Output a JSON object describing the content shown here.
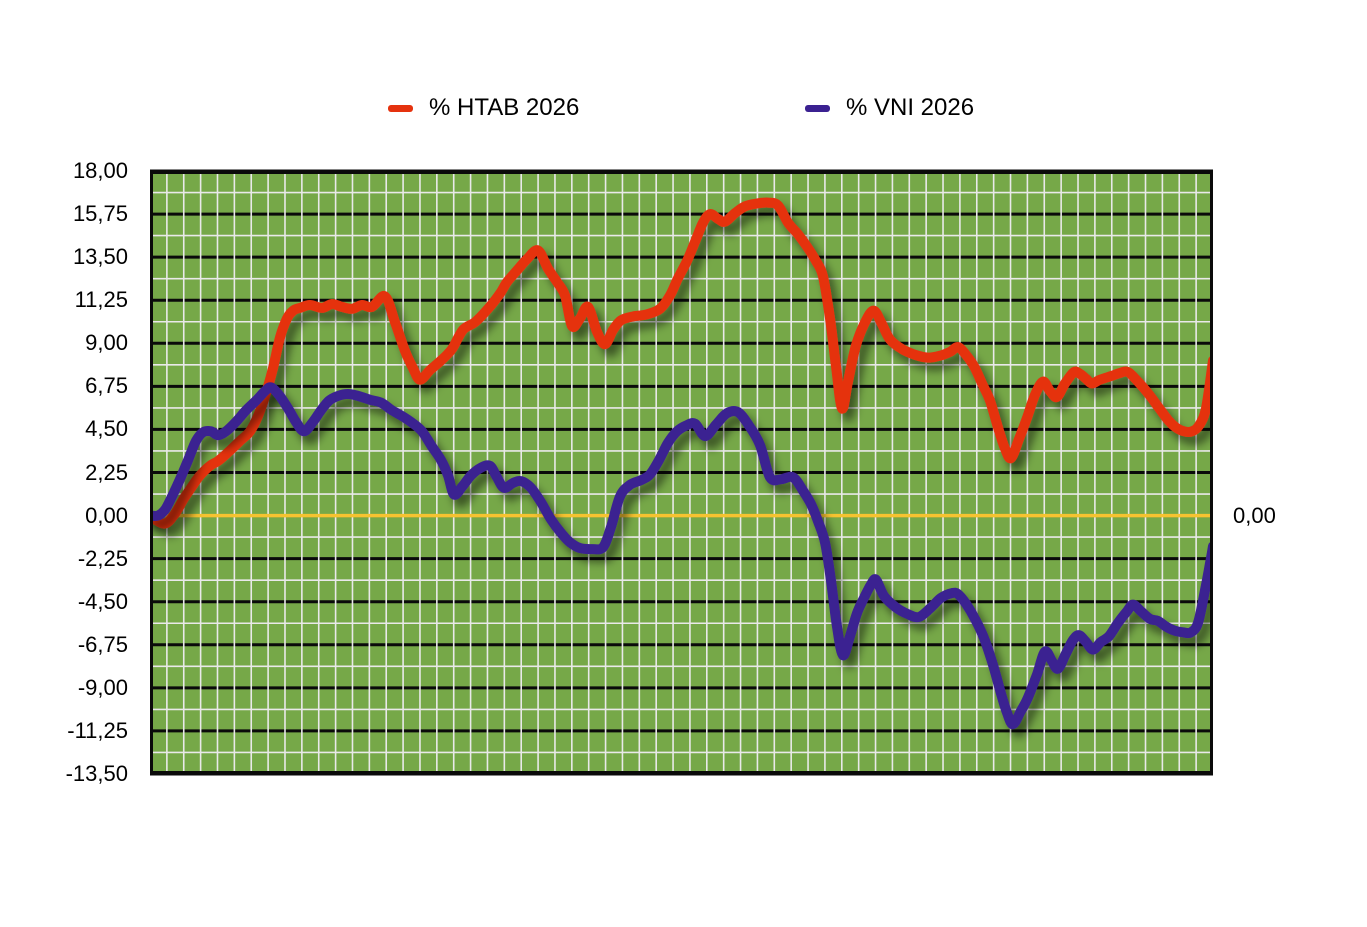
{
  "legend": {
    "items": [
      {
        "label": "% HTAB 2026",
        "color": "#E5320E"
      },
      {
        "label": "% VNI 2026",
        "color": "#3B2191"
      }
    ]
  },
  "chart_data": {
    "type": "line",
    "title": "",
    "xlabel": "",
    "ylabel": "",
    "x_axis": {
      "unit": "percent_of_plot_width",
      "tick_labels_visible": false,
      "vertical_grid_columns": 63
    },
    "y_axis": {
      "min": -13.5,
      "max": 18,
      "major_step": 2.25,
      "minor_step": 1.125,
      "tick_labels": [
        "18,00",
        "15,75",
        "13,50",
        "11,25",
        "9,00",
        "6,75",
        "4,50",
        "2,25",
        "0,00",
        "-2,25",
        "-4,50",
        "-6,75",
        "-9,00",
        "-11,25",
        "-13,50"
      ],
      "right_zero_label": "0,00"
    },
    "plot_style": {
      "background": "#76A848",
      "major_grid_color": "#0A0A0A",
      "minor_grid_color": "#E9E9E9",
      "zero_line_color": "#F6C330",
      "border_color": "#0A0A0A",
      "line_width": 10,
      "grid_on": true,
      "legend_position": "top"
    },
    "series": [
      {
        "name": "% HTAB 2026",
        "color": "#E5320E",
        "points": [
          [
            0,
            0
          ],
          [
            0.75,
            -0.3
          ],
          [
            1.51,
            -0.4
          ],
          [
            2.35,
            0.1
          ],
          [
            3.2,
            0.9
          ],
          [
            4.05,
            1.6
          ],
          [
            4.7,
            2.1
          ],
          [
            5.64,
            2.6
          ],
          [
            6.4,
            2.85
          ],
          [
            7.34,
            3.3
          ],
          [
            8.47,
            3.9
          ],
          [
            9.41,
            4.4
          ],
          [
            10.16,
            5.2
          ],
          [
            10.91,
            6.4
          ],
          [
            11.57,
            7.7
          ],
          [
            12.23,
            9.3
          ],
          [
            12.89,
            10.3
          ],
          [
            13.45,
            10.7
          ],
          [
            14.11,
            10.85
          ],
          [
            15.05,
            11.0
          ],
          [
            16.18,
            10.85
          ],
          [
            17.12,
            11.05
          ],
          [
            18.06,
            10.9
          ],
          [
            19.0,
            10.8
          ],
          [
            19.94,
            11.0
          ],
          [
            20.88,
            10.9
          ],
          [
            22.11,
            11.45
          ],
          [
            23.05,
            10.1
          ],
          [
            23.99,
            8.6
          ],
          [
            24.74,
            7.7
          ],
          [
            25.4,
            7.1
          ],
          [
            26.34,
            7.6
          ],
          [
            27.38,
            8.1
          ],
          [
            28.41,
            8.7
          ],
          [
            29.44,
            9.7
          ],
          [
            30.57,
            10.1
          ],
          [
            31.8,
            10.8
          ],
          [
            32.93,
            11.6
          ],
          [
            33.58,
            12.2
          ],
          [
            34.52,
            12.8
          ],
          [
            35.47,
            13.4
          ],
          [
            36.5,
            13.85
          ],
          [
            37.44,
            12.9
          ],
          [
            38.29,
            12.2
          ],
          [
            39.04,
            11.5
          ],
          [
            39.7,
            9.9
          ],
          [
            40.45,
            10.3
          ],
          [
            41.2,
            10.9
          ],
          [
            42.05,
            9.6
          ],
          [
            42.8,
            8.95
          ],
          [
            43.56,
            9.7
          ],
          [
            44.31,
            10.2
          ],
          [
            45.44,
            10.4
          ],
          [
            46.66,
            10.5
          ],
          [
            47.98,
            10.8
          ],
          [
            48.92,
            11.5
          ],
          [
            49.67,
            12.4
          ],
          [
            50.52,
            13.3
          ],
          [
            51.27,
            14.3
          ],
          [
            52.02,
            15.3
          ],
          [
            52.68,
            15.75
          ],
          [
            53.43,
            15.5
          ],
          [
            54.09,
            15.35
          ],
          [
            55.03,
            15.8
          ],
          [
            55.97,
            16.15
          ],
          [
            57.1,
            16.3
          ],
          [
            58.14,
            16.35
          ],
          [
            59.08,
            16.2
          ],
          [
            60.02,
            15.3
          ],
          [
            60.96,
            14.7
          ],
          [
            61.81,
            14.05
          ],
          [
            62.65,
            13.3
          ],
          [
            63.31,
            12.5
          ],
          [
            63.97,
            10.3
          ],
          [
            64.53,
            7.8
          ],
          [
            65.1,
            5.6
          ],
          [
            65.66,
            7.0
          ],
          [
            66.42,
            8.9
          ],
          [
            67.36,
            10.2
          ],
          [
            68.11,
            10.7
          ],
          [
            68.86,
            10.0
          ],
          [
            69.61,
            9.2
          ],
          [
            70.74,
            8.7
          ],
          [
            71.97,
            8.4
          ],
          [
            73.19,
            8.25
          ],
          [
            74.32,
            8.35
          ],
          [
            75.26,
            8.55
          ],
          [
            76.01,
            8.8
          ],
          [
            76.76,
            8.4
          ],
          [
            77.52,
            7.8
          ],
          [
            78.27,
            6.9
          ],
          [
            79.02,
            6.0
          ],
          [
            79.77,
            4.6
          ],
          [
            80.43,
            3.5
          ],
          [
            81.0,
            3.0
          ],
          [
            81.75,
            4.0
          ],
          [
            82.5,
            5.1
          ],
          [
            83.25,
            6.3
          ],
          [
            84.01,
            7.0
          ],
          [
            84.67,
            6.5
          ],
          [
            85.32,
            6.2
          ],
          [
            86.08,
            6.9
          ],
          [
            86.92,
            7.5
          ],
          [
            87.49,
            7.4
          ],
          [
            88.05,
            7.15
          ],
          [
            88.62,
            6.9
          ],
          [
            89.37,
            7.1
          ],
          [
            90.5,
            7.3
          ],
          [
            91.25,
            7.45
          ],
          [
            92.0,
            7.5
          ],
          [
            92.94,
            7.0
          ],
          [
            93.88,
            6.4
          ],
          [
            94.82,
            5.7
          ],
          [
            95.77,
            5.0
          ],
          [
            96.52,
            4.6
          ],
          [
            97.27,
            4.4
          ],
          [
            98.02,
            4.4
          ],
          [
            98.68,
            4.7
          ],
          [
            99.34,
            5.6
          ],
          [
            100,
            8.1
          ]
        ]
      },
      {
        "name": "% VNI 2026",
        "color": "#3B2191",
        "points": [
          [
            0,
            0
          ],
          [
            0.75,
            0.0
          ],
          [
            1.41,
            0.3
          ],
          [
            2.07,
            1.0
          ],
          [
            2.82,
            1.9
          ],
          [
            3.58,
            2.9
          ],
          [
            4.33,
            3.9
          ],
          [
            4.99,
            4.35
          ],
          [
            5.74,
            4.4
          ],
          [
            6.4,
            4.2
          ],
          [
            7.15,
            4.4
          ],
          [
            8.09,
            4.9
          ],
          [
            9.03,
            5.5
          ],
          [
            9.97,
            6.0
          ],
          [
            10.82,
            6.5
          ],
          [
            11.38,
            6.7
          ],
          [
            12.14,
            6.3
          ],
          [
            12.98,
            5.6
          ],
          [
            13.73,
            4.9
          ],
          [
            14.49,
            4.4
          ],
          [
            15.33,
            4.9
          ],
          [
            16.09,
            5.5
          ],
          [
            16.84,
            6.0
          ],
          [
            17.69,
            6.25
          ],
          [
            18.63,
            6.35
          ],
          [
            19.57,
            6.25
          ],
          [
            20.7,
            6.05
          ],
          [
            21.73,
            5.9
          ],
          [
            22.77,
            5.5
          ],
          [
            23.71,
            5.2
          ],
          [
            24.65,
            4.85
          ],
          [
            25.59,
            4.4
          ],
          [
            26.53,
            3.6
          ],
          [
            27.38,
            2.9
          ],
          [
            28.03,
            2.1
          ],
          [
            28.6,
            1.1
          ],
          [
            29.35,
            1.5
          ],
          [
            30.2,
            2.1
          ],
          [
            31.14,
            2.5
          ],
          [
            31.98,
            2.6
          ],
          [
            32.64,
            2.0
          ],
          [
            33.3,
            1.45
          ],
          [
            34.15,
            1.7
          ],
          [
            34.9,
            1.8
          ],
          [
            35.84,
            1.45
          ],
          [
            36.78,
            0.7
          ],
          [
            37.72,
            -0.2
          ],
          [
            38.66,
            -0.9
          ],
          [
            39.51,
            -1.4
          ],
          [
            40.45,
            -1.7
          ],
          [
            41.58,
            -1.75
          ],
          [
            42.62,
            -1.65
          ],
          [
            43.37,
            -0.6
          ],
          [
            44.21,
            1.0
          ],
          [
            45.15,
            1.6
          ],
          [
            46.19,
            1.85
          ],
          [
            47.04,
            2.15
          ],
          [
            47.88,
            2.9
          ],
          [
            48.73,
            3.8
          ],
          [
            49.58,
            4.4
          ],
          [
            50.42,
            4.7
          ],
          [
            51.27,
            4.8
          ],
          [
            52.21,
            4.15
          ],
          [
            53.25,
            4.75
          ],
          [
            54.28,
            5.35
          ],
          [
            55.32,
            5.4
          ],
          [
            56.35,
            4.7
          ],
          [
            57.38,
            3.7
          ],
          [
            58.33,
            2.0
          ],
          [
            59.36,
            1.9
          ],
          [
            60.49,
            2.0
          ],
          [
            61.43,
            1.3
          ],
          [
            62.18,
            0.6
          ],
          [
            62.84,
            -0.3
          ],
          [
            63.5,
            -1.4
          ],
          [
            64.06,
            -3.4
          ],
          [
            64.63,
            -5.8
          ],
          [
            65.19,
            -7.3
          ],
          [
            65.85,
            -6.3
          ],
          [
            66.51,
            -5.1
          ],
          [
            67.17,
            -4.3
          ],
          [
            67.83,
            -3.6
          ],
          [
            68.3,
            -3.35
          ],
          [
            69.05,
            -4.2
          ],
          [
            70.18,
            -4.8
          ],
          [
            71.31,
            -5.15
          ],
          [
            72.34,
            -5.3
          ],
          [
            73.47,
            -4.8
          ],
          [
            74.41,
            -4.3
          ],
          [
            75.45,
            -4.05
          ],
          [
            76.01,
            -4.1
          ],
          [
            76.76,
            -4.6
          ],
          [
            77.61,
            -5.4
          ],
          [
            78.46,
            -6.4
          ],
          [
            79.3,
            -7.8
          ],
          [
            80.06,
            -9.3
          ],
          [
            80.62,
            -10.3
          ],
          [
            81.18,
            -10.9
          ],
          [
            81.94,
            -10.2
          ],
          [
            82.6,
            -9.5
          ],
          [
            83.44,
            -8.3
          ],
          [
            84.2,
            -7.1
          ],
          [
            84.85,
            -7.6
          ],
          [
            85.42,
            -8.0
          ],
          [
            86.17,
            -7.2
          ],
          [
            86.83,
            -6.5
          ],
          [
            87.39,
            -6.25
          ],
          [
            88.05,
            -6.6
          ],
          [
            88.71,
            -7.0
          ],
          [
            89.46,
            -6.6
          ],
          [
            90.22,
            -6.3
          ],
          [
            91.06,
            -5.6
          ],
          [
            91.91,
            -5.0
          ],
          [
            92.47,
            -4.65
          ],
          [
            93.23,
            -5.0
          ],
          [
            94.07,
            -5.4
          ],
          [
            94.82,
            -5.5
          ],
          [
            95.58,
            -5.8
          ],
          [
            96.33,
            -6.0
          ],
          [
            97.18,
            -6.1
          ],
          [
            97.93,
            -6.1
          ],
          [
            98.59,
            -5.6
          ],
          [
            99.25,
            -3.9
          ],
          [
            99.72,
            -2.5
          ],
          [
            100,
            -1.6
          ]
        ]
      }
    ]
  }
}
